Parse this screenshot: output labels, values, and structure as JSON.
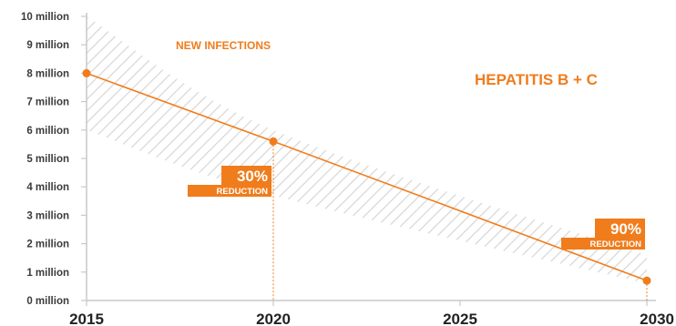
{
  "chart_data": {
    "type": "line",
    "title": "HEPATITIS B + C",
    "xlabel": "",
    "ylabel": "",
    "x": [
      2015,
      2020,
      2030
    ],
    "x_ticks": [
      "2015",
      "2020",
      "2025",
      "2030"
    ],
    "y_ticks": [
      "0 million",
      "1 million",
      "2 million",
      "3 million",
      "4 million",
      "5 million",
      "6 million",
      "7 million",
      "8 million",
      "9 million",
      "10 million"
    ],
    "ylim": [
      0,
      10
    ],
    "xlim": [
      2015,
      2030
    ],
    "grid": false,
    "series": [
      {
        "name": "NEW INFECTIONS",
        "x": [
          2015,
          2020,
          2030
        ],
        "values": [
          8.0,
          5.6,
          0.7
        ]
      }
    ],
    "band": {
      "upper": [
        [
          2015,
          10.0
        ],
        [
          2020,
          6.0
        ],
        [
          2030,
          1.6
        ]
      ],
      "lower": [
        [
          2015,
          6.0
        ],
        [
          2020,
          3.7
        ],
        [
          2030,
          0.6
        ]
      ]
    },
    "annotations": [
      {
        "year": 2020,
        "value": 5.6,
        "pct": "30%",
        "text": "REDUCTION"
      },
      {
        "year": 2030,
        "value": 0.7,
        "pct": "90%",
        "text": "REDUCTION"
      }
    ],
    "colors": {
      "accent": "#f07c1c",
      "axis": "#c8c8c8",
      "hatch": "#d6d6d6",
      "y_tick_text": "#3a3a3a",
      "x_tick_text": "#222222"
    }
  }
}
